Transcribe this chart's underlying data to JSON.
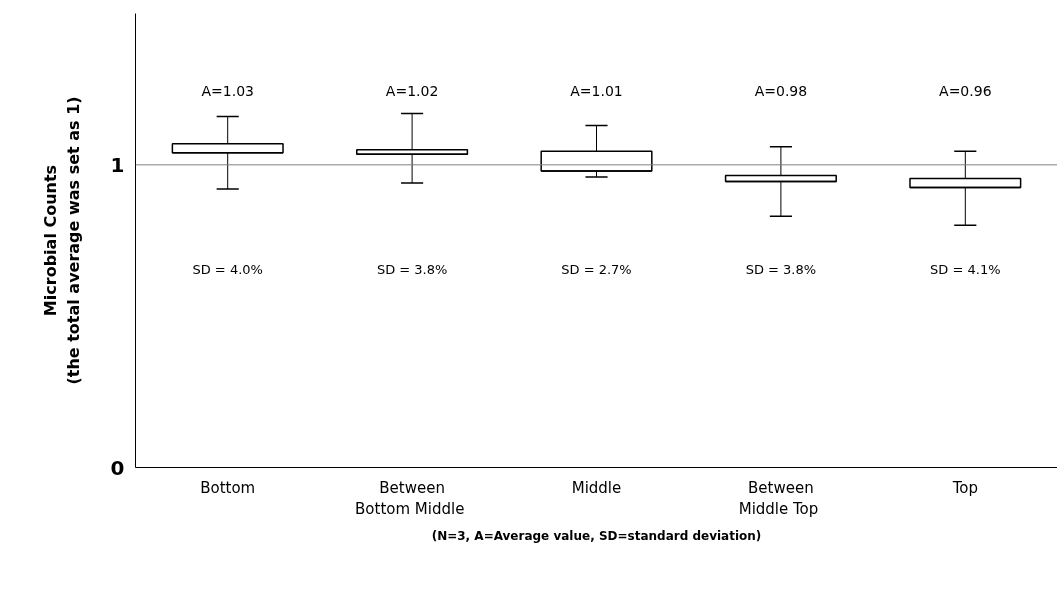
{
  "chart_data": {
    "type": "box",
    "ylabel": "Microbial Counts\n(the total average was set as 1)",
    "categories": [
      "Bottom",
      "Between\nBottom  Middle",
      "Middle",
      "Between\nMiddle  Top",
      "Top"
    ],
    "boxes": [
      {
        "low": 0.92,
        "q1": 1.04,
        "median": 1.04,
        "q3": 1.07,
        "high": 1.16
      },
      {
        "low": 0.94,
        "q1": 1.035,
        "median": 1.035,
        "q3": 1.05,
        "high": 1.17
      },
      {
        "low": 0.96,
        "q1": 0.98,
        "median": 0.98,
        "q3": 1.045,
        "high": 1.13
      },
      {
        "low": 0.83,
        "q1": 0.945,
        "median": 0.945,
        "q3": 0.965,
        "high": 1.06
      },
      {
        "low": 0.8,
        "q1": 0.925,
        "median": 0.925,
        "q3": 0.955,
        "high": 1.045
      }
    ],
    "color": "#ffffff",
    "ylim": [
      0,
      1.5
    ],
    "yticks": [
      0,
      1
    ],
    "grid": false,
    "ref_lines": [
      {
        "axis": "y",
        "value": 1,
        "color": "#808080"
      }
    ],
    "annotations": [
      "A=1.03",
      "A=1.02",
      "A=1.01",
      "A=0.98",
      "A=0.96",
      "SD = 4.0%",
      "SD = 3.8%",
      "SD = 2.7%",
      "SD = 3.8%",
      "SD = 4.1%",
      "(N=3, A=Average value, SD=standard deviation)"
    ]
  }
}
